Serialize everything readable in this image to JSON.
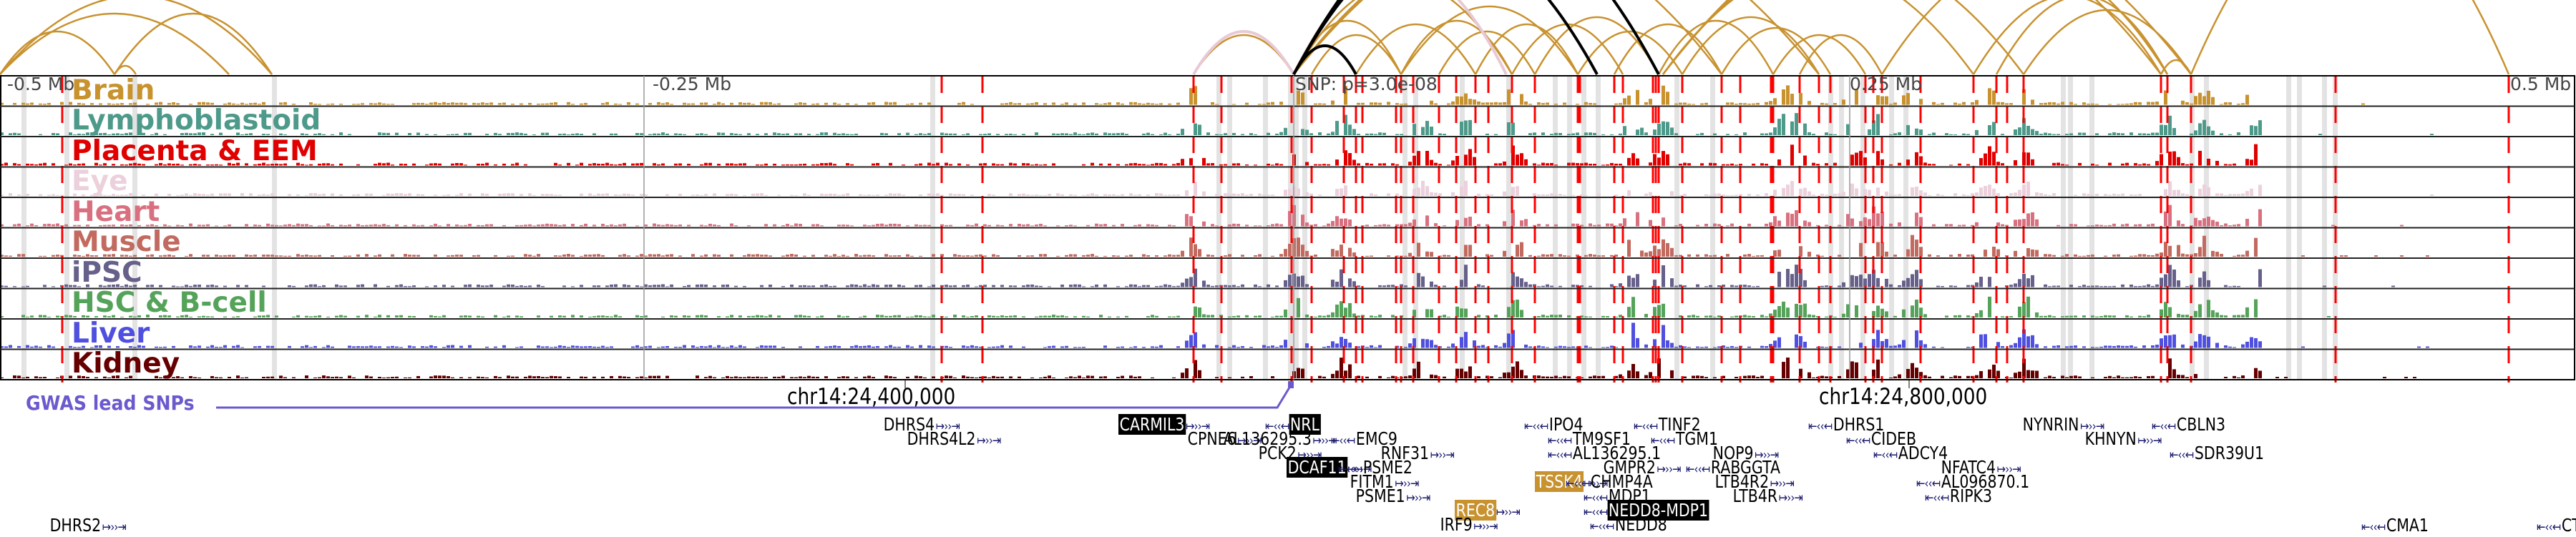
{
  "colors": {
    "arc_default": "#c8922f",
    "arc_highlight": "#000000",
    "arc_pink": "#e8c9d6",
    "snp_marker": "#ff0000",
    "shading": "#e3e3e3",
    "gwas": "#6a5acd",
    "gene_glyph": "#1a1a6e"
  },
  "axis": {
    "left_label": "-0.5 Mb",
    "mid_left_label": "-0.25 Mb",
    "snp_label": "SNP: p=3.0e-08",
    "mid_right_label": "0.25 Mb",
    "right_label": "0.5 Mb"
  },
  "tracks": [
    {
      "name": "Brain",
      "color": "#c8922f"
    },
    {
      "name": "Lymphoblastoid",
      "color": "#4e9a8a"
    },
    {
      "name": "Placenta & EEM",
      "color": "#e00000"
    },
    {
      "name": "Eye",
      "color": "#ecd0dc"
    },
    {
      "name": "Heart",
      "color": "#d9707f"
    },
    {
      "name": "Muscle",
      "color": "#c26a5f"
    },
    {
      "name": "iPSC",
      "color": "#66608a"
    },
    {
      "name": "HSC & B-cell",
      "color": "#55a35a"
    },
    {
      "name": "Liver",
      "color": "#4f4fe0"
    },
    {
      "name": "Kidney",
      "color": "#660000"
    }
  ],
  "coordinates": {
    "left": "chr14:24,400,000",
    "right": "chr14:24,800,000"
  },
  "gwas": {
    "label": "GWAS lead SNPs"
  },
  "genes": [
    {
      "name": "DHRS4",
      "strand": "+",
      "hl": ""
    },
    {
      "name": "DHRS4L2",
      "strand": "+",
      "hl": ""
    },
    {
      "name": "DHRS2",
      "strand": "+",
      "hl": ""
    },
    {
      "name": "CARMIL3",
      "strand": "+",
      "hl": "black"
    },
    {
      "name": "CPNE6",
      "strand": "+",
      "hl": ""
    },
    {
      "name": "NRL",
      "strand": "-",
      "hl": "black"
    },
    {
      "name": "AL136295.3",
      "strand": "+",
      "hl": ""
    },
    {
      "name": "PCK2",
      "strand": "+",
      "hl": ""
    },
    {
      "name": "DCAF11",
      "strand": "+",
      "hl": "black"
    },
    {
      "name": "FITM1",
      "strand": "+",
      "hl": ""
    },
    {
      "name": "PSME1",
      "strand": "+",
      "hl": ""
    },
    {
      "name": "EMC9",
      "strand": "-",
      "hl": ""
    },
    {
      "name": "RNF31",
      "strand": "+",
      "hl": ""
    },
    {
      "name": "PSME2",
      "strand": "-",
      "hl": ""
    },
    {
      "name": "REC8",
      "strand": "+",
      "hl": "gold"
    },
    {
      "name": "IRF9",
      "strand": "+",
      "hl": ""
    },
    {
      "name": "IPO4",
      "strand": "-",
      "hl": ""
    },
    {
      "name": "TM9SF1",
      "strand": "-",
      "hl": ""
    },
    {
      "name": "AL136295.1",
      "strand": "-",
      "hl": ""
    },
    {
      "name": "GMPR2",
      "strand": "+",
      "hl": ""
    },
    {
      "name": "TSSK4",
      "strand": "+",
      "hl": "gold"
    },
    {
      "name": "CHMP4A",
      "strand": "-",
      "hl": ""
    },
    {
      "name": "MDP1",
      "strand": "-",
      "hl": ""
    },
    {
      "name": "NEDD8-MDP1",
      "strand": "-",
      "hl": "black"
    },
    {
      "name": "NEDD8",
      "strand": "-",
      "hl": ""
    },
    {
      "name": "TINF2",
      "strand": "-",
      "hl": ""
    },
    {
      "name": "TGM1",
      "strand": "-",
      "hl": ""
    },
    {
      "name": "NOP9",
      "strand": "+",
      "hl": ""
    },
    {
      "name": "RABGGTA",
      "strand": "-",
      "hl": ""
    },
    {
      "name": "LTB4R2",
      "strand": "+",
      "hl": ""
    },
    {
      "name": "LTB4R",
      "strand": "+",
      "hl": ""
    },
    {
      "name": "DHRS1",
      "strand": "-",
      "hl": ""
    },
    {
      "name": "CIDEB",
      "strand": "-",
      "hl": ""
    },
    {
      "name": "ADCY4",
      "strand": "-",
      "hl": ""
    },
    {
      "name": "NFATC4",
      "strand": "+",
      "hl": ""
    },
    {
      "name": "AL096870.1",
      "strand": "-",
      "hl": ""
    },
    {
      "name": "RIPK3",
      "strand": "-",
      "hl": ""
    },
    {
      "name": "NYNRIN",
      "strand": "+",
      "hl": ""
    },
    {
      "name": "KHNYN",
      "strand": "+",
      "hl": ""
    },
    {
      "name": "CBLN3",
      "strand": "-",
      "hl": ""
    },
    {
      "name": "SDR39U1",
      "strand": "-",
      "hl": ""
    },
    {
      "name": "CMA1",
      "strand": "-",
      "hl": ""
    },
    {
      "name": "CTSG",
      "strand": "-",
      "hl": ""
    }
  ]
}
